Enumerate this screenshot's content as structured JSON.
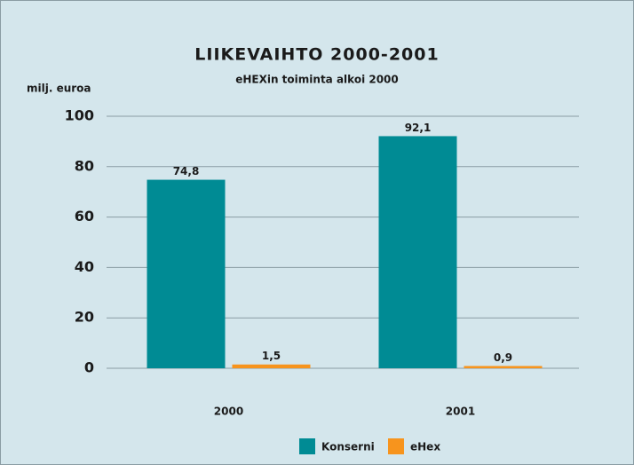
{
  "chart_data": {
    "type": "bar",
    "title": "LIIKEVAIHTO 2000-2001",
    "subtitle": "eHEXin toiminta alkoi 2000",
    "y_label": "milj. euroa",
    "categories": [
      "2000",
      "2001"
    ],
    "series": [
      {
        "name": "Konserni",
        "color": "#008b94",
        "values": [
          74.8,
          92.1
        ],
        "value_labels": [
          "74,8",
          "92,1"
        ]
      },
      {
        "name": "eHex",
        "color": "#f7941d",
        "values": [
          1.5,
          0.9
        ],
        "value_labels": [
          "1,5",
          "0,9"
        ]
      }
    ],
    "ylim": [
      0,
      100
    ],
    "yticks": [
      0,
      20,
      40,
      60,
      80,
      100
    ],
    "grid": true,
    "legend": "bottom"
  }
}
